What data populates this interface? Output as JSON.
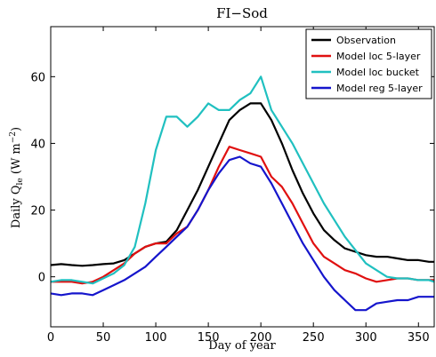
{
  "chart_data": {
    "type": "line",
    "title": "FI−Sod",
    "xlabel": "Day of year",
    "ylabel": [
      "Daily Q",
      "le",
      " (W m",
      "−2",
      ")"
    ],
    "x": [
      0,
      10,
      20,
      30,
      40,
      50,
      60,
      70,
      80,
      90,
      100,
      110,
      120,
      130,
      140,
      150,
      160,
      170,
      180,
      190,
      200,
      210,
      220,
      230,
      240,
      250,
      260,
      270,
      280,
      290,
      300,
      310,
      320,
      330,
      340,
      350,
      360,
      365
    ],
    "series": [
      {
        "name": "Observation",
        "color": "#000000",
        "values": [
          3.5,
          3.8,
          3.5,
          3.3,
          3.5,
          3.8,
          4,
          5,
          7,
          9,
          10,
          10.5,
          14,
          20,
          26,
          33,
          40,
          47,
          50,
          52,
          52,
          47,
          40,
          32,
          25,
          19,
          14,
          11,
          8.5,
          7.5,
          6.5,
          6,
          6,
          5.5,
          5,
          5,
          4.5,
          4.5
        ]
      },
      {
        "name": "Model loc 5-layer",
        "color": "#e01010",
        "values": [
          -1.5,
          -1.5,
          -1.5,
          -2,
          -1.5,
          0,
          2,
          4,
          7,
          9,
          10,
          10,
          13,
          15,
          20,
          26,
          33,
          39,
          38,
          37,
          36,
          30,
          27,
          22,
          16,
          10,
          6,
          4,
          2,
          1,
          -0.5,
          -1.5,
          -1,
          -0.5,
          -0.5,
          -1,
          -1,
          -1
        ]
      },
      {
        "name": "Model loc bucket",
        "color": "#20c0c0",
        "values": [
          -1.5,
          -1,
          -1,
          -1.5,
          -2,
          -0.5,
          1,
          3.5,
          9,
          22,
          38,
          48,
          48,
          45,
          48,
          52,
          50,
          50,
          53,
          55,
          60,
          50,
          45,
          40,
          34,
          28,
          22,
          17,
          12,
          8,
          4,
          2,
          0,
          -0.5,
          -0.5,
          -1,
          -1,
          -1.5
        ]
      },
      {
        "name": "Model reg 5-layer",
        "color": "#1515cc",
        "values": [
          -5,
          -5.5,
          -5,
          -5,
          -5.5,
          -4,
          -2.5,
          -1,
          1,
          3,
          6,
          9,
          12,
          15,
          20,
          26,
          31,
          35,
          36,
          34,
          33,
          28,
          22,
          16,
          10,
          5,
          0,
          -4,
          -7,
          -10,
          -10,
          -8,
          -7.5,
          -7,
          -7,
          -6,
          -6,
          -6
        ]
      }
    ],
    "xlim": [
      0,
      365
    ],
    "xticks": [
      0,
      50,
      100,
      150,
      200,
      250,
      300,
      350
    ],
    "ylim": [
      -15,
      75
    ],
    "yticks": [
      0,
      20,
      40,
      60
    ],
    "legend": "upper right"
  }
}
